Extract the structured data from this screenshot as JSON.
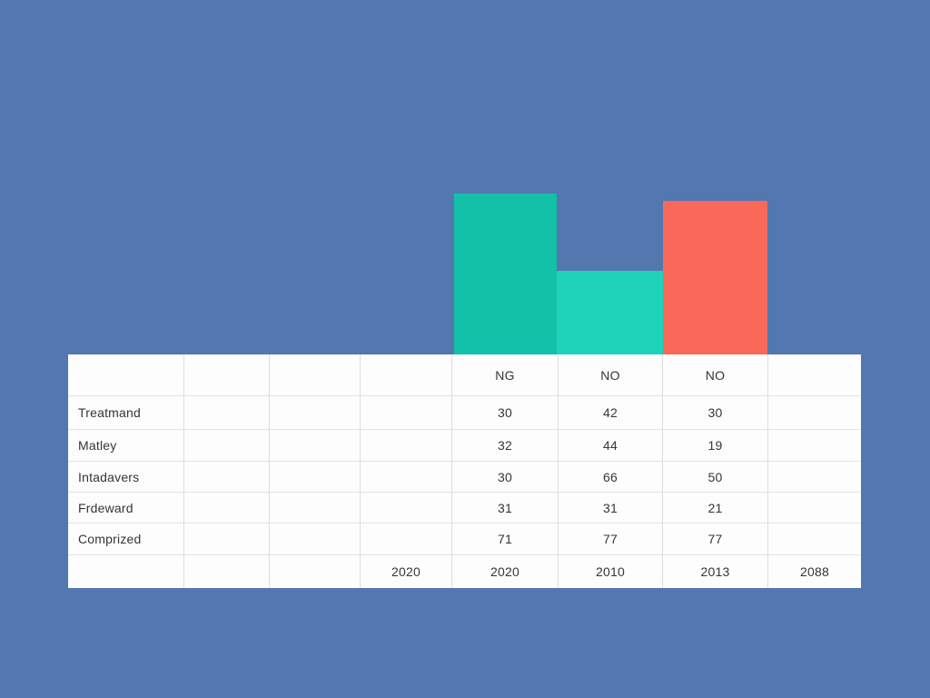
{
  "page": {
    "background_color": "#5377af"
  },
  "colors": {
    "background": "#5377af",
    "bar_ng": "#13c0a8",
    "bar_no_1": "#1ed3b9",
    "bar_no_2": "#f9695a",
    "table_background": "#fdfdfe",
    "grid_line": "#dcdfe3",
    "text": "#35353a"
  },
  "chart_data": [
    {
      "type": "bar",
      "categories": [
        "NG",
        "NO",
        "NO"
      ],
      "values": [
        177,
        92,
        169
      ],
      "value_unit": "pixel bar height (no value axis shown)",
      "series_colors": [
        "#13c0a8",
        "#1ed3b9",
        "#f9695a"
      ],
      "title": "",
      "xlabel": "",
      "ylabel": "",
      "legend_position": "none",
      "grid": "off",
      "note": "Three bars rest directly on top of the table, aligned to the NG / NO / NO columns"
    },
    {
      "type": "table",
      "header_row": [
        "",
        "",
        "",
        "",
        "NG",
        "NO",
        "NO",
        ""
      ],
      "row_labels": [
        "Treatmand",
        "Matley",
        "Intadavers",
        "Frdeward",
        "Comprized"
      ],
      "data_rows": [
        [
          "30",
          "42",
          "30"
        ],
        [
          "32",
          "44",
          "19"
        ],
        [
          "30",
          "66",
          "50"
        ],
        [
          "31",
          "31",
          "21"
        ],
        [
          "71",
          "77",
          "77"
        ]
      ],
      "footer_row": [
        "",
        "",
        "",
        "2020",
        "2020",
        "2010",
        "2013",
        "2088"
      ]
    }
  ],
  "table": {
    "grid": [
      [
        "",
        "",
        "",
        "",
        "NG",
        "NO",
        "NO",
        ""
      ],
      [
        "Treatmand",
        "",
        "",
        "",
        "30",
        "42",
        "30",
        ""
      ],
      [
        "Matley",
        "",
        "",
        "",
        "32",
        "44",
        "19",
        ""
      ],
      [
        "Intadavers",
        "",
        "",
        "",
        "30",
        "66",
        "50",
        ""
      ],
      [
        "Frdeward",
        "",
        "",
        "",
        "31",
        "31",
        "21",
        ""
      ],
      [
        "Comprized",
        "",
        "",
        "",
        "71",
        "77",
        "77",
        ""
      ],
      [
        "",
        "",
        "",
        "2020",
        "2020",
        "2010",
        "2013",
        "2088"
      ]
    ]
  }
}
